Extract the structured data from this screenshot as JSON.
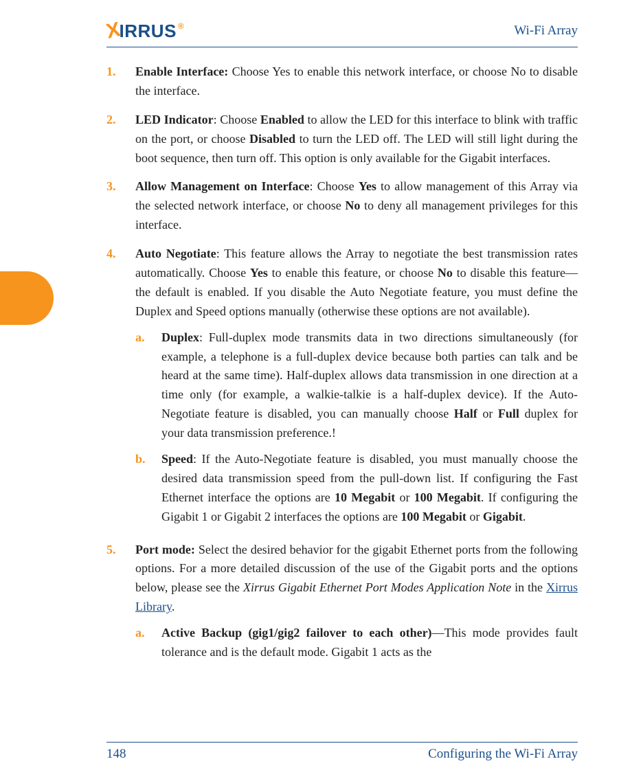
{
  "header": {
    "brand_x": "X",
    "brand_rest": "IRRUS",
    "brand_reg": "®",
    "right_title": "Wi-Fi Array"
  },
  "items": [
    {
      "num": "1.",
      "html": "<b class='term'>Enable Interface:</b> Choose Yes to enable this network interface, or choose No to disable the interface."
    },
    {
      "num": "2.",
      "html": "<b class='term'>LED Indicator</b>: Choose <b class='term'>Enabled</b> to allow the LED for this interface to blink with traffic on the port, or choose <b class='term'>Disabled</b> to turn the LED off. The LED will still light during the boot sequence, then turn off. This option is only available for the Gigabit interfaces."
    },
    {
      "num": "3.",
      "html": "<b class='term'>Allow Management on Interface</b>: Choose <b class='term'>Yes</b> to allow management of this Array via the selected network interface, or choose <b class='term'>No</b> to deny all management privileges for this interface."
    },
    {
      "num": "4.",
      "html": "<b class='term'>Auto Negotiate</b>: This feature allows the Array to negotiate the best transmission rates automatically. Choose <b class='term'>Yes</b> to enable this feature, or choose <b class='term'>No</b> to disable this feature—the default is enabled. If you disable the Auto Negotiate feature, you must define the Duplex and Speed options manually (otherwise these options are not available).",
      "subs": [
        {
          "letter": "a.",
          "html": "<b class='term'>Duplex</b>: Full-duplex mode transmits data in two directions simultaneously (for example, a telephone is a full-duplex device because both parties can talk and be heard at the same time). Half-duplex allows data transmission in one direction at a time only (for example, a walkie-talkie is a half-duplex device). If the Auto-Negotiate feature is disabled, you can manually choose <b class='term'>Half</b> or <b class='term'>Full</b> duplex for your data transmission preference.!"
        },
        {
          "letter": "b.",
          "html": "<b class='term'>Speed</b>: If the Auto-Negotiate feature is disabled, you must manually choose the desired data transmission speed from the pull-down list. If configuring the Fast Ethernet interface the options are <b class='term'>10 Megabit</b> or <b class='term'>100 Megabit</b>. If configuring the Gigabit 1 or Gigabit 2 interfaces the options are <b class='term'>100 Megabit</b> or <b class='term'>Gigabit</b>."
        }
      ]
    },
    {
      "num": "5.",
      "html": "<b class='term'>Port mode:</b> Select the desired behavior for the gigabit Ethernet ports from the following options. For a more detailed discussion of the use of the Gigabit ports and the options below, please see the <span class='italic'>Xirrus Gigabit Ethernet Port Modes Application Note</span> in the <span class='link'>Xirrus Library</span>.",
      "subs": [
        {
          "letter": "a.",
          "html": "<b class='term'>Active Backup (gig1/gig2 failover to each other)</b>—This mode provides fault tolerance and is the default mode. Gigabit 1 acts as the"
        }
      ]
    }
  ],
  "footer": {
    "page_number": "148",
    "caption": "Configuring the Wi-Fi Array"
  },
  "colors": {
    "accent_orange": "#f7941d",
    "brand_blue": "#1a4f8a",
    "text": "#222222",
    "background": "#ffffff"
  }
}
